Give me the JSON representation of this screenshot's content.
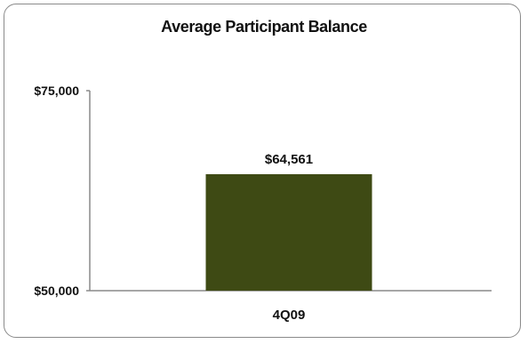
{
  "chart_data": {
    "type": "bar",
    "title": "Average Participant Balance",
    "xlabel": "",
    "ylabel": "",
    "categories": [
      "4Q09"
    ],
    "values": [
      64561
    ],
    "data_labels": [
      "$64,561"
    ],
    "ylim": [
      50000,
      75000
    ],
    "yticks": [
      50000,
      75000
    ],
    "ytick_labels": [
      "$50,000",
      "$75,000"
    ],
    "grid": false,
    "legend": "none",
    "colors": {
      "bar": "#3e4a14",
      "axis": "#8a8a8a",
      "border": "#8a8a8a"
    }
  }
}
